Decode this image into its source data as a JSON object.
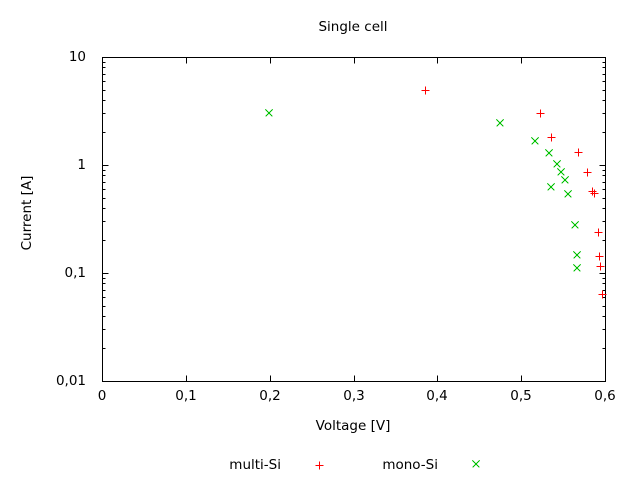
{
  "figure": {
    "background": "#ffffff",
    "text_color": "#000000",
    "axis_color": "#000000"
  },
  "chart_data": {
    "type": "scatter",
    "title": "Single cell",
    "xlabel": "Voltage [V]",
    "ylabel": "Current [A]",
    "grid": false,
    "legend_position": "below-plot",
    "decimal_separator": ",",
    "x_axis": {
      "scale": "linear",
      "min": 0,
      "max": 0.6,
      "ticks": [
        {
          "value": 0,
          "label": "0"
        },
        {
          "value": 0.1,
          "label": "0,1"
        },
        {
          "value": 0.2,
          "label": "0,2"
        },
        {
          "value": 0.3,
          "label": "0,3"
        },
        {
          "value": 0.4,
          "label": "0,4"
        },
        {
          "value": 0.5,
          "label": "0,5"
        },
        {
          "value": 0.6,
          "label": "0,6"
        }
      ]
    },
    "y_axis": {
      "scale": "log",
      "min": 0.01,
      "max": 10,
      "minor_ticks": true,
      "ticks": [
        {
          "value": 10,
          "label": "10"
        },
        {
          "value": 1,
          "label": "1"
        },
        {
          "value": 0.1,
          "label": "0,1"
        },
        {
          "value": 0.01,
          "label": "0,01"
        }
      ]
    },
    "series": [
      {
        "name": "multi-Si",
        "marker": "plus",
        "color": "#ff0000",
        "points": [
          [
            0.385,
            4.9
          ],
          [
            0.522,
            3.0
          ],
          [
            0.536,
            1.8
          ],
          [
            0.568,
            1.33
          ],
          [
            0.579,
            0.87
          ],
          [
            0.585,
            0.57
          ],
          [
            0.587,
            0.55
          ],
          [
            0.592,
            0.24
          ],
          [
            0.593,
            0.143
          ],
          [
            0.594,
            0.115
          ],
          [
            0.596,
            0.064
          ]
        ]
      },
      {
        "name": "mono-Si",
        "marker": "cross",
        "color": "#00c000",
        "points": [
          [
            0.199,
            3.0
          ],
          [
            0.475,
            2.46
          ],
          [
            0.516,
            1.68
          ],
          [
            0.533,
            1.3
          ],
          [
            0.543,
            1.03
          ],
          [
            0.548,
            0.86
          ],
          [
            0.552,
            0.72
          ],
          [
            0.535,
            0.62
          ],
          [
            0.556,
            0.54
          ],
          [
            0.564,
            0.28
          ],
          [
            0.567,
            0.146
          ],
          [
            0.567,
            0.112
          ]
        ]
      }
    ]
  }
}
